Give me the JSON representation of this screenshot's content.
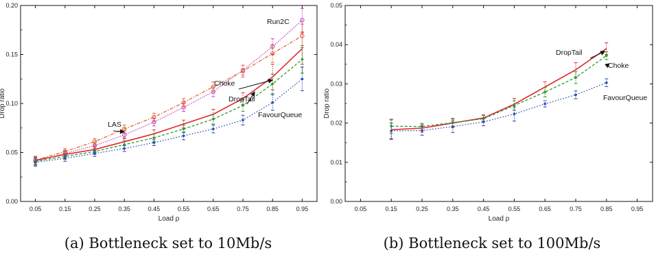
{
  "captions": [
    "(a) Bottleneck set to 10Mb/s",
    "(b) Bottleneck set to 100Mb/s"
  ],
  "colors": {
    "DropTail": "#e0262a",
    "Choke": "#2e9a2e",
    "FavourQueue": "#2a4fb0",
    "LAS": "#e2652e",
    "Run2C": "#c046c0"
  },
  "chart_data": [
    {
      "type": "line",
      "xlabel": "Load ρ",
      "ylabel": "Drop ratio",
      "xticks": [
        "0.05",
        "0.15",
        "0.25",
        "0.35",
        "0.45",
        "0.55",
        "0.65",
        "0.75",
        "0.85",
        "0.95"
      ],
      "yticks": [
        "0.00",
        "0.05",
        "0.10",
        "0.15",
        "0.20"
      ],
      "xlim": [
        0.0,
        1.0
      ],
      "ylim": [
        0.0,
        0.2
      ],
      "grid": false,
      "series": [
        {
          "name": "Run2C",
          "x": [
            0.05,
            0.15,
            0.25,
            0.35,
            0.45,
            0.55,
            0.65,
            0.75,
            0.85,
            0.95
          ],
          "y": [
            0.041,
            0.049,
            0.057,
            0.068,
            0.081,
            0.096,
            0.112,
            0.134,
            0.158,
            0.185
          ],
          "err": [
            0.004,
            0.003,
            0.003,
            0.004,
            0.004,
            0.004,
            0.005,
            0.005,
            0.008,
            0.012
          ]
        },
        {
          "name": "LAS",
          "x": [
            0.05,
            0.15,
            0.25,
            0.35,
            0.45,
            0.55,
            0.65,
            0.75,
            0.85,
            0.95
          ],
          "y": [
            0.042,
            0.051,
            0.061,
            0.074,
            0.086,
            0.101,
            0.117,
            0.133,
            0.151,
            0.169
          ],
          "err": [
            0.004,
            0.003,
            0.003,
            0.004,
            0.004,
            0.004,
            0.005,
            0.006,
            0.009,
            0.012
          ]
        },
        {
          "name": "DropTail",
          "x": [
            0.05,
            0.15,
            0.25,
            0.35,
            0.45,
            0.55,
            0.65,
            0.75,
            0.85,
            0.95
          ],
          "y": [
            0.042,
            0.048,
            0.053,
            0.061,
            0.069,
            0.079,
            0.089,
            0.105,
            0.127,
            0.156
          ],
          "err": [
            0.004,
            0.003,
            0.003,
            0.004,
            0.004,
            0.004,
            0.005,
            0.006,
            0.013,
            0.016
          ]
        },
        {
          "name": "Choke",
          "x": [
            0.05,
            0.15,
            0.25,
            0.35,
            0.45,
            0.55,
            0.65,
            0.75,
            0.85,
            0.95
          ],
          "y": [
            0.041,
            0.046,
            0.051,
            0.058,
            0.065,
            0.074,
            0.084,
            0.098,
            0.12,
            0.145
          ],
          "err": [
            0.004,
            0.003,
            0.003,
            0.004,
            0.004,
            0.004,
            0.005,
            0.006,
            0.01,
            0.014
          ]
        },
        {
          "name": "FavourQueue",
          "x": [
            0.05,
            0.15,
            0.25,
            0.35,
            0.45,
            0.55,
            0.65,
            0.75,
            0.85,
            0.95
          ],
          "y": [
            0.04,
            0.044,
            0.049,
            0.054,
            0.06,
            0.067,
            0.074,
            0.083,
            0.101,
            0.125
          ],
          "err": [
            0.004,
            0.003,
            0.003,
            0.003,
            0.003,
            0.004,
            0.004,
            0.005,
            0.008,
            0.012
          ]
        }
      ],
      "annotations": [
        {
          "text": "Run2C",
          "series": "Run2C"
        },
        {
          "text": "Choke",
          "series": "Choke"
        },
        {
          "text": "DropTail",
          "series": "DropTail"
        },
        {
          "text": "FavourQueue",
          "series": "FavourQueue"
        },
        {
          "text": "LAS",
          "series": "LAS"
        }
      ]
    },
    {
      "type": "line",
      "xlabel": "Load ρ",
      "ylabel": "Drop ratio",
      "xticks": [
        "0.05",
        "0.15",
        "0.25",
        "0.35",
        "0.45",
        "0.55",
        "0.65",
        "0.75",
        "0.85",
        "0.95"
      ],
      "yticks": [
        "0.00",
        "0.01",
        "0.02",
        "0.03",
        "0.04",
        "0.05"
      ],
      "xlim": [
        0.0,
        1.0
      ],
      "ylim": [
        0.0,
        0.05
      ],
      "grid": false,
      "series": [
        {
          "name": "DropTail",
          "x": [
            0.15,
            0.25,
            0.35,
            0.45,
            0.55,
            0.65,
            0.75,
            0.85
          ],
          "y": [
            0.0183,
            0.0187,
            0.02,
            0.0213,
            0.0248,
            0.0292,
            0.0336,
            0.039
          ],
          "err": [
            0.0025,
            0.001,
            0.0012,
            0.0008,
            0.0015,
            0.0013,
            0.0018,
            0.0015
          ]
        },
        {
          "name": "Choke",
          "x": [
            0.15,
            0.25,
            0.35,
            0.45,
            0.55,
            0.65,
            0.75,
            0.85
          ],
          "y": [
            0.0192,
            0.0191,
            0.0201,
            0.0211,
            0.0245,
            0.0279,
            0.0316,
            0.0372
          ],
          "err": [
            0.0018,
            0.0008,
            0.0009,
            0.0008,
            0.0012,
            0.0012,
            0.0015,
            0.001
          ]
        },
        {
          "name": "FavourQueue",
          "x": [
            0.15,
            0.25,
            0.35,
            0.45,
            0.55,
            0.65,
            0.75,
            0.85
          ],
          "y": [
            0.018,
            0.0181,
            0.0191,
            0.0203,
            0.0223,
            0.0249,
            0.0272,
            0.0303
          ],
          "err": [
            0.002,
            0.0012,
            0.0015,
            0.001,
            0.0018,
            0.0008,
            0.001,
            0.001
          ]
        }
      ],
      "annotations": [
        {
          "text": "DropTail",
          "series": "DropTail"
        },
        {
          "text": "Choke",
          "series": "Choke"
        },
        {
          "text": "FavourQueue",
          "series": "FavourQueue"
        }
      ]
    }
  ]
}
